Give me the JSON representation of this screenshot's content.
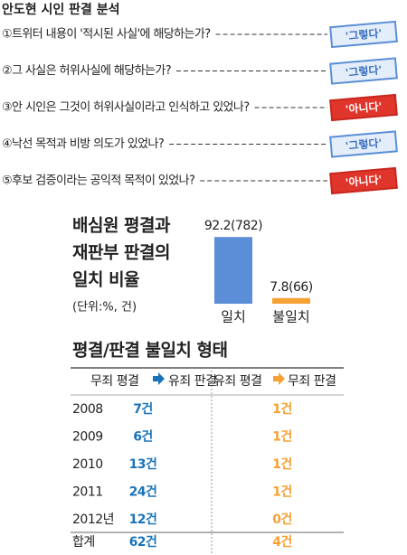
{
  "title": "안도현 시인 판결 분석",
  "questions": [
    {
      "text": "①트위터 내용이 '적시된 사실'에 해당하는가?",
      "answer": "'그렇다'"
    },
    {
      "text": "②그 사실은 허위사실에 해당하는가?",
      "answer": "'그렇다'"
    },
    {
      "text": "③안 시인은 그것이 허위사실이라고 인식하고 있었나?",
      "answer": "'아니다'"
    },
    {
      "text": "④낙선 목적과 비방 의도가 있었나?",
      "answer": "'그렇다'"
    },
    {
      "text": "⑤후보 검증이라는 공익적 목적이 있었나?",
      "answer": "'아니다'"
    }
  ],
  "chart_data": {
    "type": "bar",
    "title": [
      "배심원 평결과",
      "재판부 판결의",
      "일치 비율"
    ],
    "subtitle": "(단위:%, 건)",
    "categories": [
      "일치",
      "불일치"
    ],
    "values": [
      92.2,
      7.8
    ],
    "value_labels": [
      "92.2(782)",
      "7.8(66)"
    ],
    "colors": [
      "#5b8ed6",
      "#f5a133"
    ],
    "ylim": [
      0,
      100
    ]
  },
  "table": {
    "title": "평결/판결 불일치 형태",
    "header": [
      "무죄 평결",
      "유죄 판결",
      "유죄 평결",
      "무죄 판결"
    ],
    "rows": [
      [
        "2008",
        "7건",
        "1건"
      ],
      [
        "2009",
        "6건",
        "1건"
      ],
      [
        "2010",
        "13건",
        "1건"
      ],
      [
        "2011",
        "24건",
        "1건"
      ],
      [
        "2012년",
        "12건",
        "0건"
      ],
      [
        "합계",
        "62건",
        "4건"
      ]
    ]
  }
}
